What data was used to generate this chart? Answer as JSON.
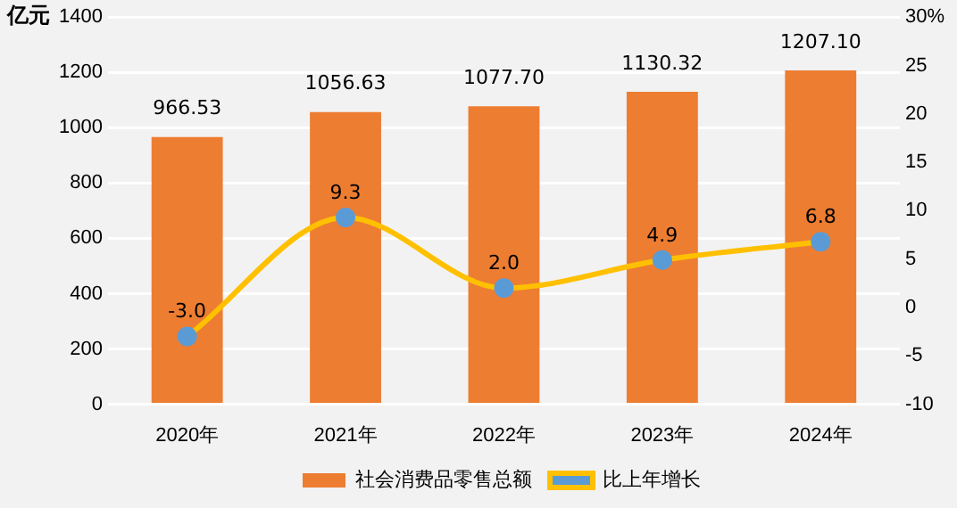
{
  "chart_data": {
    "type": "bar",
    "ylabel": "亿元",
    "categories": [
      "2020年",
      "2021年",
      "2022年",
      "2023年",
      "2024年"
    ],
    "series": [
      {
        "name": "社会消费品零售总额",
        "color": "#ed7d31",
        "values": [
          966.53,
          1056.63,
          1077.7,
          1130.32,
          1207.1
        ],
        "value_labels": [
          "966.53",
          "1056.63",
          "1077.70",
          "1130.32",
          "1207.10"
        ]
      },
      {
        "name": "比上年增长",
        "type": "line",
        "axis": "y2",
        "color": "#ffc000",
        "marker": "circle",
        "values": [
          -3.0,
          9.3,
          2.0,
          4.9,
          6.8
        ],
        "value_labels": [
          "-3.0",
          "9.3",
          "2.0",
          "4.9",
          "6.8"
        ]
      }
    ],
    "ylim": [
      0,
      1400
    ],
    "yticks": [
      0,
      200,
      400,
      600,
      800,
      1000,
      1200,
      1400
    ],
    "y2lim": [
      -10,
      30
    ],
    "y2ticks": [
      -10,
      -5,
      0,
      5,
      10,
      15,
      20,
      {
        "value": 25,
        "label": "25"
      },
      {
        "value": 30,
        "label": "30%"
      }
    ],
    "grid": "y",
    "legend": "bottom"
  }
}
